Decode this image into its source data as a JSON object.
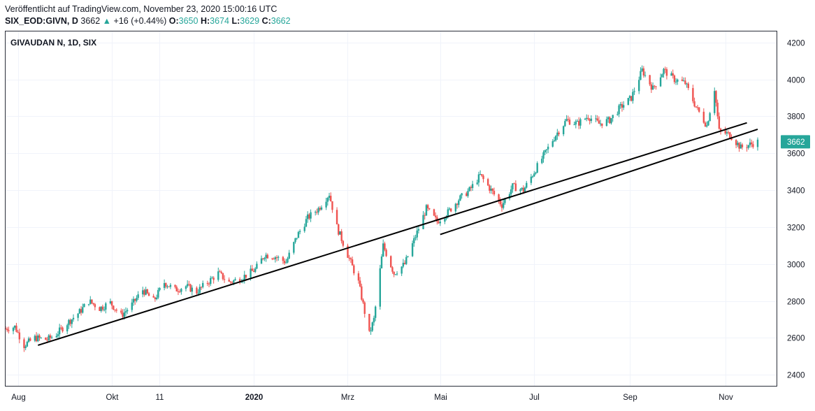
{
  "header": {
    "published": "Veröffentlicht auf TradingView.com, November 23, 2020 15:00:16 UTC",
    "symbol": "SIX_EOD:GIVN, D",
    "last": "3662",
    "arrow": "▲",
    "change": "+16 (+0.44%)",
    "o_label": "O:",
    "o_value": "3650",
    "h_label": "H:",
    "h_value": "3674",
    "l_label": "L:",
    "l_value": "3629",
    "c_label": "C:",
    "c_value": "3662"
  },
  "colors": {
    "up": "#26a69a",
    "down": "#ef5350",
    "price_label": "#26a69a",
    "line": "#000000"
  },
  "chart_data": {
    "type": "candlestick",
    "title": "GIVAUDAN N, 1D, SIX",
    "y_ticks": [
      2400,
      2600,
      2800,
      3000,
      3200,
      3400,
      3600,
      3800,
      4000,
      4200
    ],
    "ylim": [
      2340,
      4260
    ],
    "x_start": "2019-07-24",
    "x_end": "2020-11-23",
    "x_ticks": [
      {
        "label": "Aug",
        "date": "2019-08-01",
        "bold": false
      },
      {
        "label": "Okt",
        "date": "2019-10-01",
        "bold": false
      },
      {
        "label": "11",
        "date": "2019-11-01",
        "bold": false
      },
      {
        "label": "2020",
        "date": "2020-01-01",
        "bold": true
      },
      {
        "label": "Mrz",
        "date": "2020-03-02",
        "bold": false
      },
      {
        "label": "Mai",
        "date": "2020-05-01",
        "bold": false
      },
      {
        "label": "Jul",
        "date": "2020-07-01",
        "bold": false
      },
      {
        "label": "Sep",
        "date": "2020-09-01",
        "bold": false
      },
      {
        "label": "Nov",
        "date": "2020-11-02",
        "bold": false
      }
    ],
    "last_price": "3662",
    "price_path": [
      [
        "2019-07-24",
        2650
      ],
      [
        "2019-07-30",
        2660
      ],
      [
        "2019-08-05",
        2560
      ],
      [
        "2019-08-12",
        2600
      ],
      [
        "2019-08-20",
        2590
      ],
      [
        "2019-08-26",
        2620
      ],
      [
        "2019-09-02",
        2680
      ],
      [
        "2019-09-10",
        2740
      ],
      [
        "2019-09-16",
        2800
      ],
      [
        "2019-09-23",
        2760
      ],
      [
        "2019-09-30",
        2790
      ],
      [
        "2019-10-07",
        2720
      ],
      [
        "2019-10-14",
        2780
      ],
      [
        "2019-10-21",
        2860
      ],
      [
        "2019-10-28",
        2800
      ],
      [
        "2019-11-04",
        2900
      ],
      [
        "2019-11-11",
        2860
      ],
      [
        "2019-11-18",
        2880
      ],
      [
        "2019-11-25",
        2850
      ],
      [
        "2019-12-02",
        2900
      ],
      [
        "2019-12-09",
        2950
      ],
      [
        "2019-12-16",
        2900
      ],
      [
        "2019-12-23",
        2920
      ],
      [
        "2020-01-02",
        2970
      ],
      [
        "2020-01-08",
        3050
      ],
      [
        "2020-01-15",
        3040
      ],
      [
        "2020-01-22",
        3010
      ],
      [
        "2020-01-29",
        3150
      ],
      [
        "2020-02-05",
        3250
      ],
      [
        "2020-02-12",
        3300
      ],
      [
        "2020-02-19",
        3380
      ],
      [
        "2020-02-24",
        3200
      ],
      [
        "2020-03-02",
        3050
      ],
      [
        "2020-03-09",
        2900
      ],
      [
        "2020-03-16",
        2620
      ],
      [
        "2020-03-19",
        2700
      ],
      [
        "2020-03-25",
        3100
      ],
      [
        "2020-04-01",
        2950
      ],
      [
        "2020-04-08",
        3000
      ],
      [
        "2020-04-15",
        3150
      ],
      [
        "2020-04-22",
        3300
      ],
      [
        "2020-04-29",
        3230
      ],
      [
        "2020-05-06",
        3280
      ],
      [
        "2020-05-13",
        3350
      ],
      [
        "2020-05-20",
        3400
      ],
      [
        "2020-05-27",
        3480
      ],
      [
        "2020-06-03",
        3400
      ],
      [
        "2020-06-10",
        3320
      ],
      [
        "2020-06-17",
        3420
      ],
      [
        "2020-06-24",
        3400
      ],
      [
        "2020-07-01",
        3500
      ],
      [
        "2020-07-08",
        3600
      ],
      [
        "2020-07-15",
        3700
      ],
      [
        "2020-07-22",
        3780
      ],
      [
        "2020-07-29",
        3760
      ],
      [
        "2020-08-05",
        3800
      ],
      [
        "2020-08-12",
        3760
      ],
      [
        "2020-08-19",
        3780
      ],
      [
        "2020-08-26",
        3850
      ],
      [
        "2020-09-02",
        3900
      ],
      [
        "2020-09-09",
        4050
      ],
      [
        "2020-09-16",
        3950
      ],
      [
        "2020-09-23",
        4050
      ],
      [
        "2020-09-30",
        4000
      ],
      [
        "2020-10-07",
        3980
      ],
      [
        "2020-10-14",
        3850
      ],
      [
        "2020-10-21",
        3750
      ],
      [
        "2020-10-26",
        3950
      ],
      [
        "2020-10-29",
        3720
      ],
      [
        "2020-11-05",
        3700
      ],
      [
        "2020-11-12",
        3630
      ],
      [
        "2020-11-23",
        3662
      ]
    ],
    "trend_lines": [
      {
        "from": [
          "2019-08-14",
          2560
        ],
        "to": [
          "2020-11-16",
          3765
        ]
      },
      {
        "from": [
          "2020-05-01",
          3160
        ],
        "to": [
          "2020-11-23",
          3730
        ]
      }
    ]
  }
}
